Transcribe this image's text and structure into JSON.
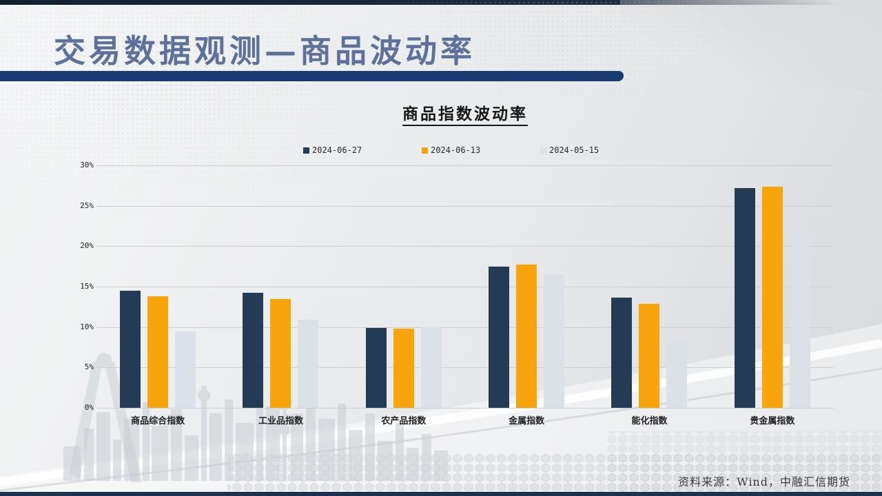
{
  "slide": {
    "title": "交易数据观测—商品波动率",
    "source_note": "资料来源：Wind，中融汇信期货"
  },
  "chart_data": {
    "type": "bar",
    "title": "商品指数波动率",
    "categories": [
      "商品综合指数",
      "工业品指数",
      "农产品指数",
      "金属指数",
      "能化指数",
      "贵金属指数"
    ],
    "series": [
      {
        "name": "2024-06-27",
        "color": "#243b55",
        "values": [
          14.5,
          14.2,
          9.9,
          17.5,
          13.6,
          27.2
        ]
      },
      {
        "name": "2024-06-13",
        "color": "#f8a40c",
        "values": [
          13.8,
          13.5,
          9.8,
          17.7,
          12.9,
          27.4
        ]
      },
      {
        "name": "2024-05-15",
        "color": "#dce1e8",
        "values": [
          9.5,
          10.9,
          10.0,
          16.5,
          8.4,
          21.7
        ]
      }
    ],
    "ylim": [
      0,
      30
    ],
    "ytick_step": 5,
    "ytick_labels": [
      "0%",
      "5%",
      "10%",
      "15%",
      "20%",
      "25%",
      "30%"
    ],
    "grid": true,
    "legend_position": "top"
  }
}
